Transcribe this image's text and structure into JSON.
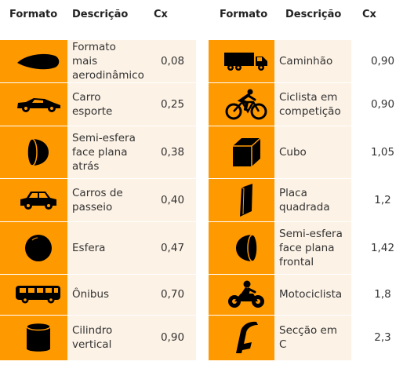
{
  "headers": {
    "formato": "Formato",
    "descricao": "Descrição",
    "cx": "Cx"
  },
  "left": [
    {
      "icon": "teardrop-icon",
      "descricao": "Formato mais aerodinâmico",
      "cx": "0,08"
    },
    {
      "icon": "sports-car-icon",
      "descricao": "Carro esporte",
      "cx": "0,25"
    },
    {
      "icon": "hemisphere-flat-back-icon",
      "descricao": "Semi-esfera face plana atrás",
      "cx": "0,38"
    },
    {
      "icon": "passenger-car-icon",
      "descricao": "Carros de passeio",
      "cx": "0,40"
    },
    {
      "icon": "sphere-icon",
      "descricao": "Esfera",
      "cx": "0,47"
    },
    {
      "icon": "bus-icon",
      "descricao": "Ônibus",
      "cx": "0,70"
    },
    {
      "icon": "cylinder-icon",
      "descricao": "Cilindro vertical",
      "cx": "0,90"
    }
  ],
  "right": [
    {
      "icon": "truck-icon",
      "descricao": "Caminhão",
      "cx": "0,90"
    },
    {
      "icon": "racing-cyclist-icon",
      "descricao": "Ciclista em competição",
      "cx": "0,90"
    },
    {
      "icon": "cube-icon",
      "descricao": "Cubo",
      "cx": "1,05"
    },
    {
      "icon": "square-plate-icon",
      "descricao": "Placa quadrada",
      "cx": "1,2"
    },
    {
      "icon": "hemisphere-flat-front-icon",
      "descricao": "Semi-esfera face plana frontal",
      "cx": "1,42"
    },
    {
      "icon": "motorcyclist-icon",
      "descricao": "Motociclista",
      "cx": "1,8"
    },
    {
      "icon": "c-section-icon",
      "descricao": "Secção em C",
      "cx": "2,3"
    }
  ],
  "colors": {
    "icon_bg": "#ff9900",
    "desc_bg": "#fcf2e6",
    "icon_fg": "#000000"
  }
}
